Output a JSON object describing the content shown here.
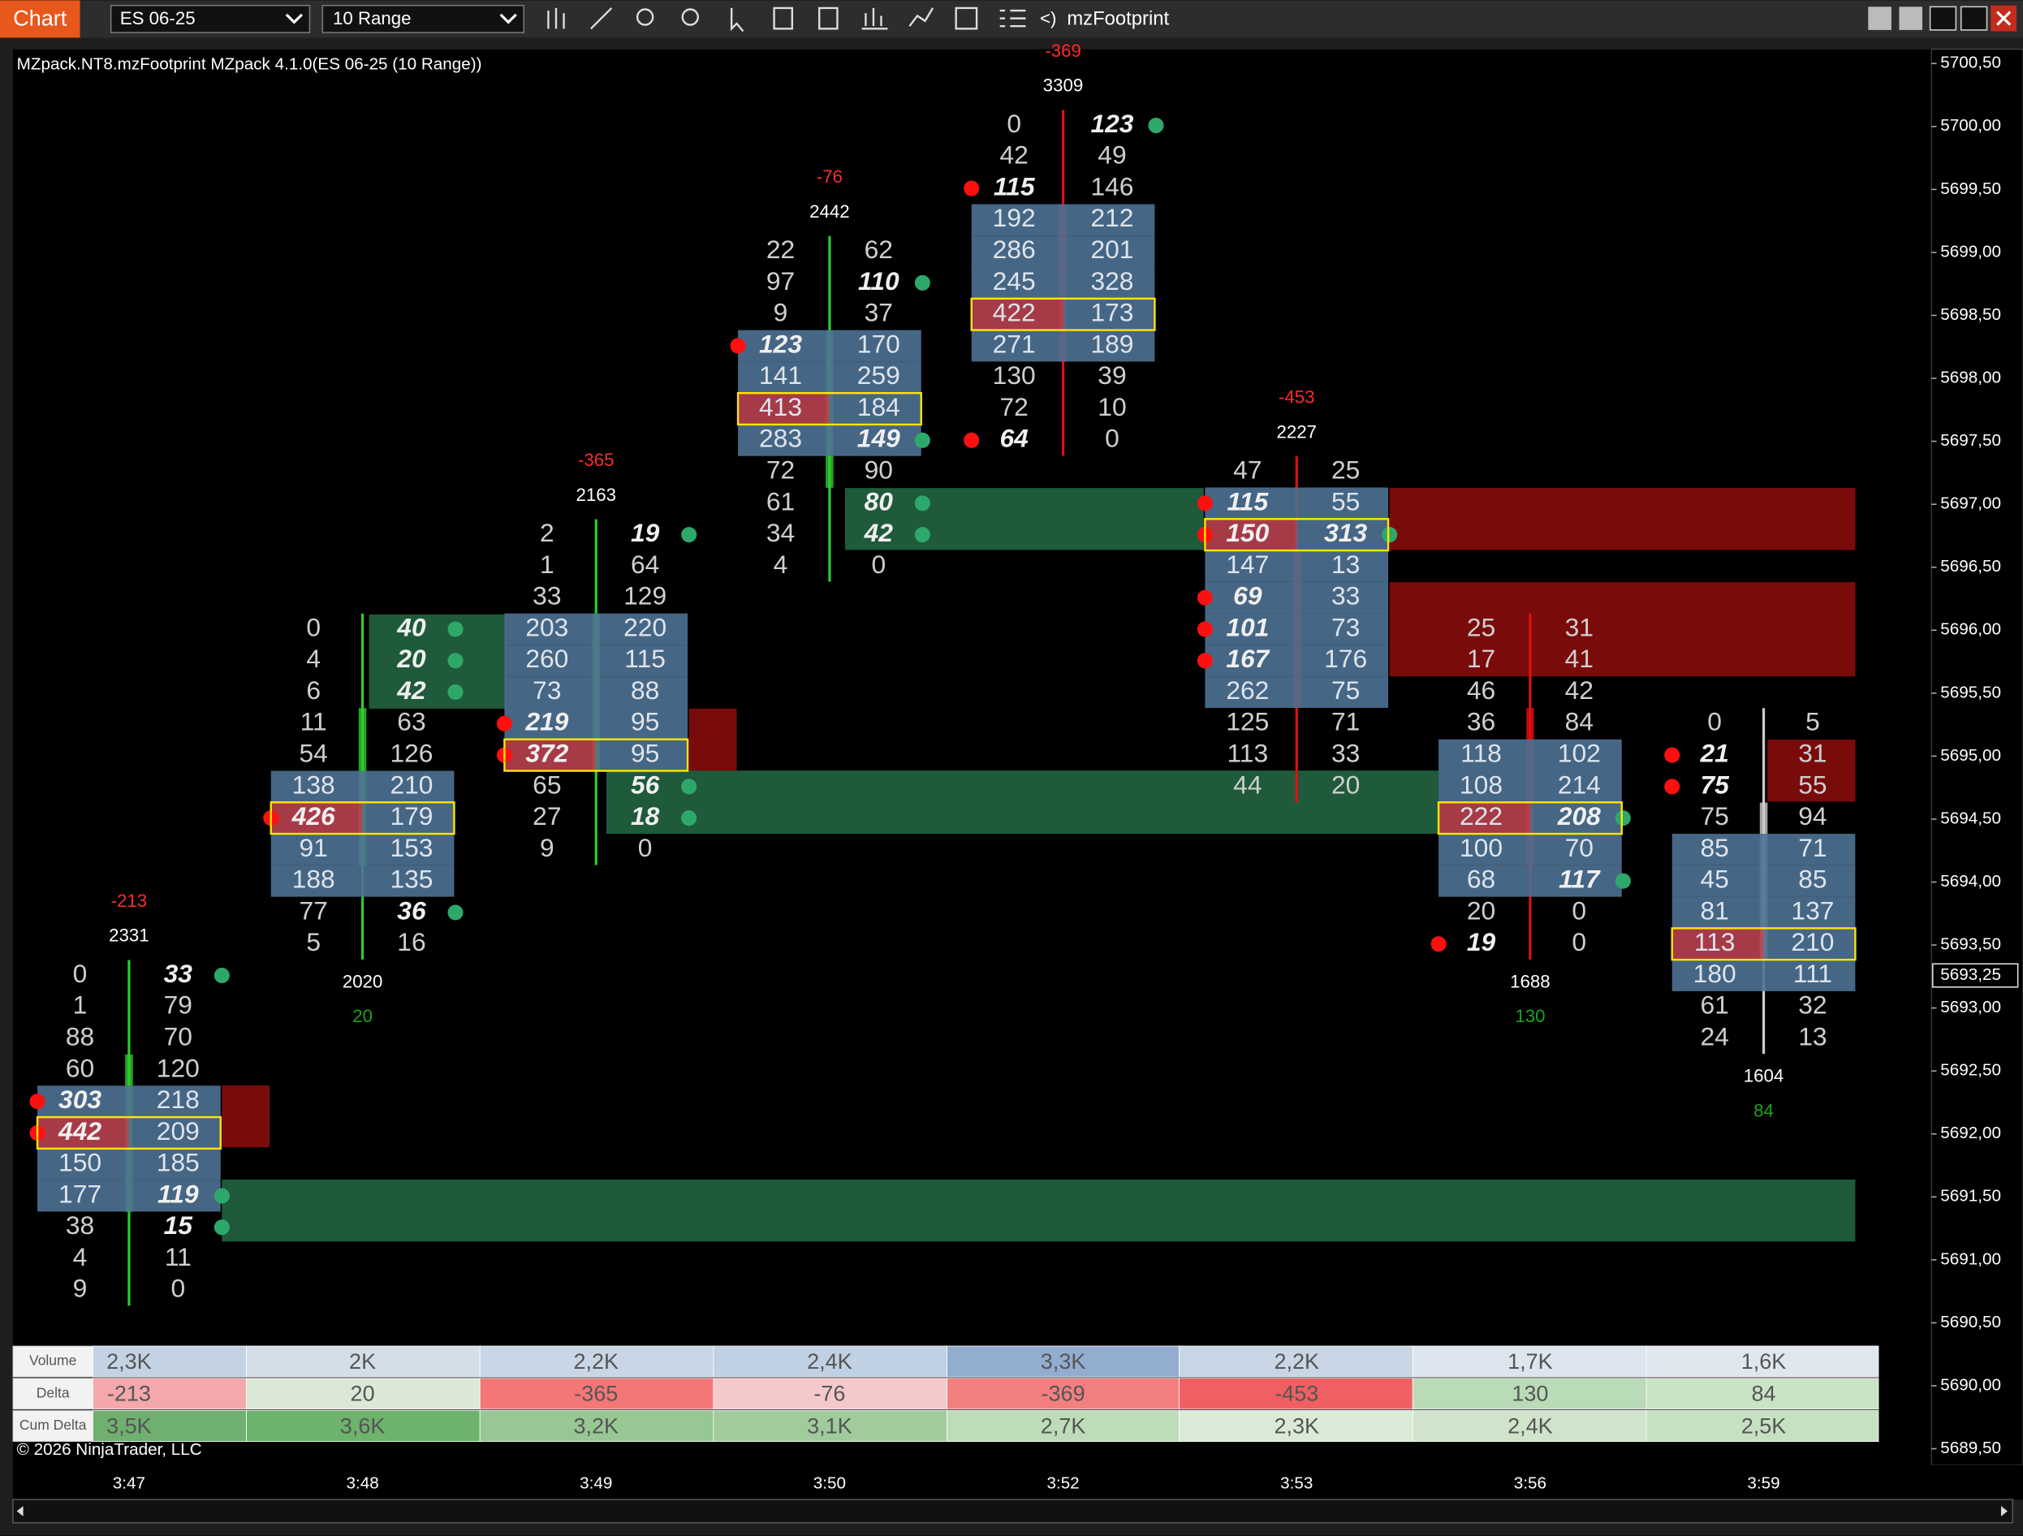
{
  "toolbar": {
    "app_label": "Chart",
    "instrument": "ES 06-25",
    "bar_type": "10 Range",
    "indicator_prefix": "<)",
    "indicator": "mzFootprint"
  },
  "chart": {
    "title": "MZpack.NT8.mzFootprint MZpack 4.1.0(ES 06-25 (10 Range))",
    "copyright": "© 2026 NinjaTrader, LLC",
    "bars": [
      {
        "time": "3:47",
        "delta": -213,
        "volume": 2331,
        "rows": [
          [
            0,
            33
          ],
          [
            1,
            79
          ],
          [
            88,
            70
          ],
          [
            60,
            120
          ],
          [
            303,
            218
          ],
          [
            442,
            209
          ],
          [
            150,
            185
          ],
          [
            177,
            119
          ],
          [
            38,
            15
          ],
          [
            4,
            11
          ],
          [
            9,
            0
          ]
        ]
      },
      {
        "time": "3:48",
        "delta": 20,
        "volume": 2020,
        "rows": [
          [
            0,
            40
          ],
          [
            4,
            20
          ],
          [
            6,
            42
          ],
          [
            11,
            63
          ],
          [
            54,
            126
          ],
          [
            138,
            210
          ],
          [
            426,
            179
          ],
          [
            91,
            153
          ],
          [
            188,
            135
          ],
          [
            77,
            36
          ],
          [
            5,
            16
          ]
        ]
      },
      {
        "time": "3:49",
        "delta": -365,
        "volume": 2163,
        "rows": [
          [
            2,
            19
          ],
          [
            1,
            64
          ],
          [
            33,
            129
          ],
          [
            203,
            220
          ],
          [
            260,
            115
          ],
          [
            73,
            88
          ],
          [
            219,
            95
          ],
          [
            372,
            95
          ],
          [
            65,
            56
          ],
          [
            27,
            18
          ],
          [
            9,
            0
          ]
        ]
      },
      {
        "time": "3:50",
        "delta": -76,
        "volume": 2442,
        "rows": [
          [
            22,
            62
          ],
          [
            97,
            110
          ],
          [
            9,
            37
          ],
          [
            123,
            170
          ],
          [
            141,
            259
          ],
          [
            413,
            184
          ],
          [
            283,
            149
          ],
          [
            72,
            90
          ],
          [
            61,
            80
          ],
          [
            34,
            42
          ],
          [
            4,
            0
          ]
        ]
      },
      {
        "time": "3:52",
        "delta": -369,
        "volume": 3309,
        "rows": [
          [
            0,
            123
          ],
          [
            42,
            49
          ],
          [
            115,
            146
          ],
          [
            192,
            212
          ],
          [
            286,
            201
          ],
          [
            245,
            328
          ],
          [
            422,
            173
          ],
          [
            271,
            189
          ],
          [
            130,
            39
          ],
          [
            72,
            10
          ],
          [
            64,
            0
          ]
        ]
      },
      {
        "time": "3:53",
        "delta": -453,
        "volume": 2227,
        "rows": [
          [
            47,
            25
          ],
          [
            115,
            55
          ],
          [
            150,
            313
          ],
          [
            147,
            13
          ],
          [
            69,
            33
          ],
          [
            101,
            73
          ],
          [
            167,
            176
          ],
          [
            262,
            75
          ],
          [
            125,
            71
          ],
          [
            113,
            33
          ],
          [
            44,
            20
          ]
        ]
      },
      {
        "time": "3:56",
        "delta": 130,
        "volume": 1688,
        "rows": [
          [
            25,
            31
          ],
          [
            17,
            41
          ],
          [
            46,
            42
          ],
          [
            36,
            84
          ],
          [
            118,
            102
          ],
          [
            108,
            214
          ],
          [
            222,
            208
          ],
          [
            100,
            70
          ],
          [
            68,
            117
          ],
          [
            20,
            0
          ],
          [
            19,
            0
          ]
        ]
      },
      {
        "time": "3:59",
        "delta": 84,
        "volume": 1604,
        "rows": [
          [
            0,
            5
          ],
          [
            21,
            31
          ],
          [
            75,
            55
          ],
          [
            75,
            94
          ],
          [
            85,
            71
          ],
          [
            45,
            85
          ],
          [
            81,
            137
          ],
          [
            113,
            210
          ],
          [
            180,
            111
          ],
          [
            61,
            32
          ],
          [
            24,
            13
          ]
        ]
      }
    ],
    "price_axis": {
      "labels": [
        "5700,50",
        "5700,00",
        "5699,50",
        "5699,00",
        "5698,50",
        "5698,00",
        "5697,50",
        "5697,00",
        "5696,50",
        "5696,00",
        "5695,50",
        "5695,00",
        "5694,50",
        "5694,00",
        "5693,50",
        "5693,00",
        "5692,50",
        "5692,00",
        "5691,50",
        "5691,00",
        "5690,50",
        "5690,00",
        "5689,50"
      ],
      "current_price": "5693,25"
    },
    "summary": {
      "row_labels": [
        "Volume",
        "Delta",
        "Cum Delta"
      ],
      "volume": [
        "2,3K",
        "2K",
        "2,2K",
        "2,4K",
        "3,3K",
        "2,2K",
        "1,7K",
        "1,6K"
      ],
      "delta": [
        -213,
        20,
        -365,
        -76,
        -369,
        -453,
        130,
        84
      ],
      "cum_delta": [
        "3,5K",
        "3,6K",
        "3,2K",
        "3,1K",
        "2,7K",
        "2,3K",
        "2,4K",
        "2,5K"
      ]
    }
  }
}
